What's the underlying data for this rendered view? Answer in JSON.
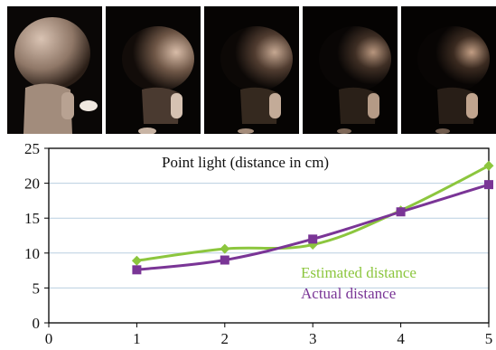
{
  "photos": {
    "count": 5,
    "subject": "toy figure lit by a point light"
  },
  "chart_data": {
    "type": "line",
    "title": "Point light (distance in cm)",
    "xlabel": "",
    "ylabel": "",
    "xlim": [
      0,
      5
    ],
    "ylim": [
      0,
      25
    ],
    "x_ticks": [
      "0",
      "1",
      "2",
      "3",
      "4",
      "5"
    ],
    "y_ticks": [
      "0",
      "5",
      "10",
      "15",
      "20",
      "25"
    ],
    "grid": "horizontal",
    "legend_placement": "bottom-right",
    "x": [
      1,
      2,
      3,
      4,
      5
    ],
    "series": [
      {
        "name": "Estimated distance",
        "values": [
          8.9,
          10.6,
          11.2,
          16.1,
          22.5
        ],
        "color": "#8cc63e",
        "marker": "diamond"
      },
      {
        "name": "Actual distance",
        "values": [
          7.6,
          9.0,
          12.0,
          15.9,
          19.8
        ],
        "color": "#7a3596",
        "marker": "square"
      }
    ]
  }
}
